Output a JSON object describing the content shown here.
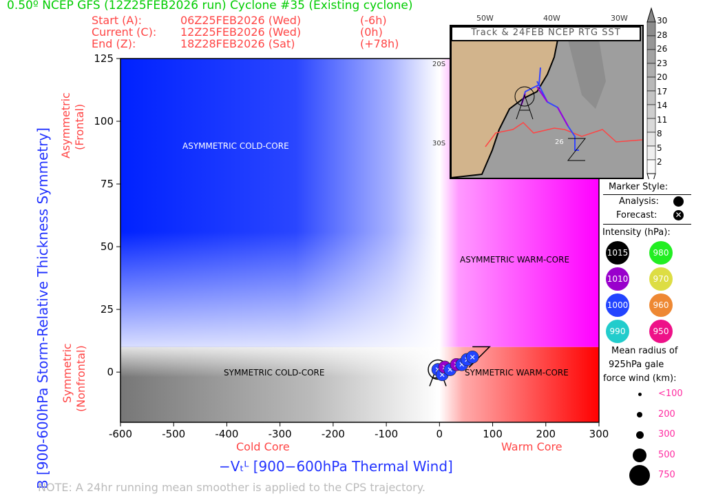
{
  "header": {
    "title": "0.50º NCEP GFS (12Z25FEB2026 run) Cyclone #35 (Existing cyclone)",
    "start_label": "Start (A):",
    "start_time": "06Z25FEB2026 (Wed)",
    "start_offset": "(-6h)",
    "current_label": "Current (C):",
    "current_time": "12Z25FEB2026 (Wed)",
    "current_offset": "(0h)",
    "end_label": "End (Z):",
    "end_time": "18Z28FEB2026 (Sat)",
    "end_offset": "(+78h)"
  },
  "chart_data": {
    "type": "scatter",
    "xlabel": "-V_T^L [900-600hPa Thermal Wind]",
    "xlabel_text": "−Vₜᴸ [900−600hPa Thermal Wind]",
    "ylabel": "B [900-600hPa Storm-Relative Thickness Symmetry]",
    "xlim": [
      -600,
      300
    ],
    "ylim": [
      -20,
      125
    ],
    "xticks": [
      -600,
      -500,
      -400,
      -300,
      -200,
      -100,
      0,
      100,
      200,
      300
    ],
    "yticks": [
      0,
      25,
      50,
      75,
      100,
      125
    ],
    "x_annotations": {
      "cold": "Cold Core",
      "warm": "Warm Core"
    },
    "y_annotations": {
      "asym": "Asymmetric\n(Frontal)",
      "asym1": "Asymmetric",
      "asym2": "(Frontal)",
      "sym1": "Symmetric",
      "sym2": "(Nonfrontal)"
    },
    "quadrants": {
      "ul": "ASYMMETRIC COLD-CORE",
      "ur": "ASYMMETRIC WARM-CORE",
      "ll": "SYMMETRIC COLD-CORE",
      "lr": "SYMMETRIC WARM-CORE"
    },
    "track": [
      {
        "x": -3,
        "y": 1,
        "p": 1000
      },
      {
        "x": 5,
        "y": -1,
        "p": 1000
      },
      {
        "x": 10,
        "y": 2,
        "p": 1010
      },
      {
        "x": 20,
        "y": 1,
        "p": 1000
      },
      {
        "x": 32,
        "y": 3,
        "p": 1010
      },
      {
        "x": 42,
        "y": 3,
        "p": 1000
      },
      {
        "x": 52,
        "y": 5,
        "p": 1000
      },
      {
        "x": 62,
        "y": 6,
        "p": 1000
      }
    ],
    "note": "NOTE:  A 24hr running mean smoother is applied to the CPS trajectory."
  },
  "inset": {
    "title": "Track & 24FEB NCEP RTG SST",
    "lon_labels": [
      "50W",
      "40W",
      "30W"
    ],
    "lat_labels": [
      "20S",
      "30S"
    ],
    "contour_label": "26",
    "colorbar": [
      "30",
      "28",
      "26",
      "23",
      "20",
      "17",
      "14",
      "11",
      "8",
      "5",
      "2"
    ]
  },
  "legend": {
    "marker_style": "Marker Style:",
    "analysis": "Analysis:",
    "forecast": "Forecast:",
    "intensity": "Intensity (hPa):",
    "intensity_items": [
      {
        "v": "1015",
        "c": "#000000"
      },
      {
        "v": "980",
        "c": "#22ee22"
      },
      {
        "v": "1010",
        "c": "#9900cc"
      },
      {
        "v": "970",
        "c": "#dddd44"
      },
      {
        "v": "1000",
        "c": "#2244ff"
      },
      {
        "v": "960",
        "c": "#ee8833"
      },
      {
        "v": "990",
        "c": "#22cccc"
      },
      {
        "v": "950",
        "c": "#ee1188"
      }
    ],
    "radius_title1": "Mean radius of",
    "radius_title2": "925hPa gale",
    "radius_title3": "force wind (km):",
    "radius_items": [
      "<100",
      "200",
      "300",
      "500",
      "750"
    ]
  }
}
